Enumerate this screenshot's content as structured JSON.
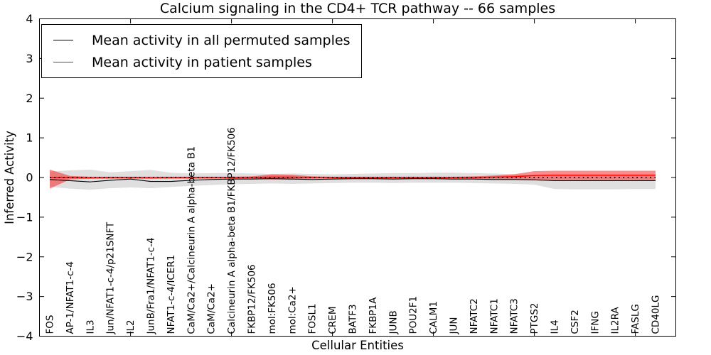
{
  "figure": {
    "title": "Calcium signaling in the CD4+ TCR pathway -- 66 samples",
    "xlabel": "Cellular Entities",
    "ylabel": "Inferred Activity",
    "samples_count": 66
  },
  "legend": {
    "items": [
      {
        "label": "Mean activity in all permuted samples",
        "color": "#000000"
      },
      {
        "label": "Mean activity in patient samples",
        "color": "#ff0000"
      }
    ]
  },
  "chart_data": {
    "type": "line",
    "title": "Calcium signaling in the CD4+ TCR pathway -- 66 samples",
    "xlabel": "Cellular Entities",
    "ylabel": "Inferred Activity",
    "ylim": [
      -4,
      4
    ],
    "yticks": [
      -4,
      -3,
      -2,
      -1,
      0,
      1,
      2,
      3,
      4
    ],
    "x_tick_positions": [
      5,
      10,
      15,
      20,
      25,
      30
    ],
    "grid": false,
    "legend_position": "upper left",
    "zero_line": {
      "y": 0,
      "style": "dotted",
      "color": "#000000"
    },
    "categories": [
      "FOS",
      "AP-1/NFAT1-c-4",
      "IL3",
      "Jun/NFAT1-c-4/p21SNFT",
      "IL2",
      "JunB/Fra1/NFAT1-c-4",
      "NFAT1-c-4/ICER1",
      "CaM/Ca2+/Calcineurin A alpha-beta B1",
      "CaM/Ca2+",
      "Calcineurin A alpha-beta B1/FKBP12/FK506",
      "FKBP12/FK506",
      "mol:FK506",
      "mol:Ca2+",
      "FOSL1",
      "CREM",
      "BATF3",
      "FKBP1A",
      "JUNB",
      "POU2F1",
      "CALM1",
      "JUN",
      "NFATC2",
      "NFATC1",
      "NFATC3",
      "PTGS2",
      "IL4",
      "CSF2",
      "IFNG",
      "IL2RA",
      "FASLG",
      "CD40LG"
    ],
    "series": [
      {
        "name": "Mean activity in all permuted samples",
        "color": "#000000",
        "band_color": "rgba(128,128,128,0.25)",
        "values": [
          -0.05,
          -0.08,
          -0.11,
          -0.07,
          -0.04,
          -0.1,
          -0.1,
          -0.07,
          -0.05,
          -0.04,
          -0.04,
          -0.03,
          -0.04,
          -0.05,
          -0.04,
          -0.03,
          -0.03,
          -0.04,
          -0.03,
          -0.03,
          -0.04,
          -0.04,
          -0.05,
          -0.05,
          -0.06,
          -0.08,
          -0.08,
          -0.08,
          -0.08,
          -0.08,
          -0.08
        ],
        "band_upper": [
          0.15,
          0.18,
          0.2,
          0.13,
          0.16,
          0.19,
          0.12,
          0.1,
          0.11,
          0.11,
          0.1,
          0.09,
          0.1,
          0.09,
          0.08,
          0.09,
          0.1,
          0.11,
          0.11,
          0.12,
          0.12,
          0.11,
          0.1,
          0.08,
          0.05,
          0.05,
          0.05,
          0.05,
          0.05,
          0.05,
          0.05
        ],
        "band_lower": [
          -0.24,
          -0.28,
          -0.31,
          -0.27,
          -0.25,
          -0.27,
          -0.24,
          -0.21,
          -0.19,
          -0.17,
          -0.16,
          -0.15,
          -0.16,
          -0.15,
          -0.14,
          -0.13,
          -0.13,
          -0.14,
          -0.13,
          -0.13,
          -0.13,
          -0.14,
          -0.15,
          -0.16,
          -0.18,
          -0.29,
          -0.3,
          -0.3,
          -0.3,
          -0.29,
          -0.29
        ]
      },
      {
        "name": "Mean activity in patient samples",
        "color": "#ff0000",
        "band_color": "rgba(255,0,0,0.45)",
        "values": [
          0.0,
          0.0,
          -0.01,
          0.0,
          0.0,
          -0.01,
          0.0,
          0.0,
          0.0,
          0.0,
          0.0,
          0.01,
          0.01,
          0.0,
          0.0,
          0.0,
          0.0,
          0.0,
          0.0,
          0.0,
          0.0,
          0.0,
          0.01,
          0.02,
          0.05,
          0.06,
          0.06,
          0.06,
          0.06,
          0.06,
          0.06
        ],
        "band_upper": [
          0.2,
          0.04,
          0.02,
          0.02,
          0.02,
          0.02,
          0.02,
          0.02,
          0.02,
          0.02,
          0.03,
          0.08,
          0.07,
          0.03,
          0.02,
          0.02,
          0.02,
          0.02,
          0.02,
          0.02,
          0.02,
          0.03,
          0.05,
          0.08,
          0.16,
          0.17,
          0.17,
          0.17,
          0.17,
          0.17,
          0.17
        ],
        "band_lower": [
          -0.28,
          -0.05,
          -0.03,
          -0.03,
          -0.03,
          -0.03,
          -0.03,
          -0.03,
          -0.03,
          -0.03,
          -0.03,
          -0.05,
          -0.05,
          -0.03,
          -0.03,
          -0.03,
          -0.03,
          -0.03,
          -0.03,
          -0.03,
          -0.03,
          -0.03,
          -0.04,
          -0.05,
          -0.06,
          -0.06,
          -0.06,
          -0.06,
          -0.06,
          -0.06,
          -0.06
        ]
      }
    ]
  }
}
